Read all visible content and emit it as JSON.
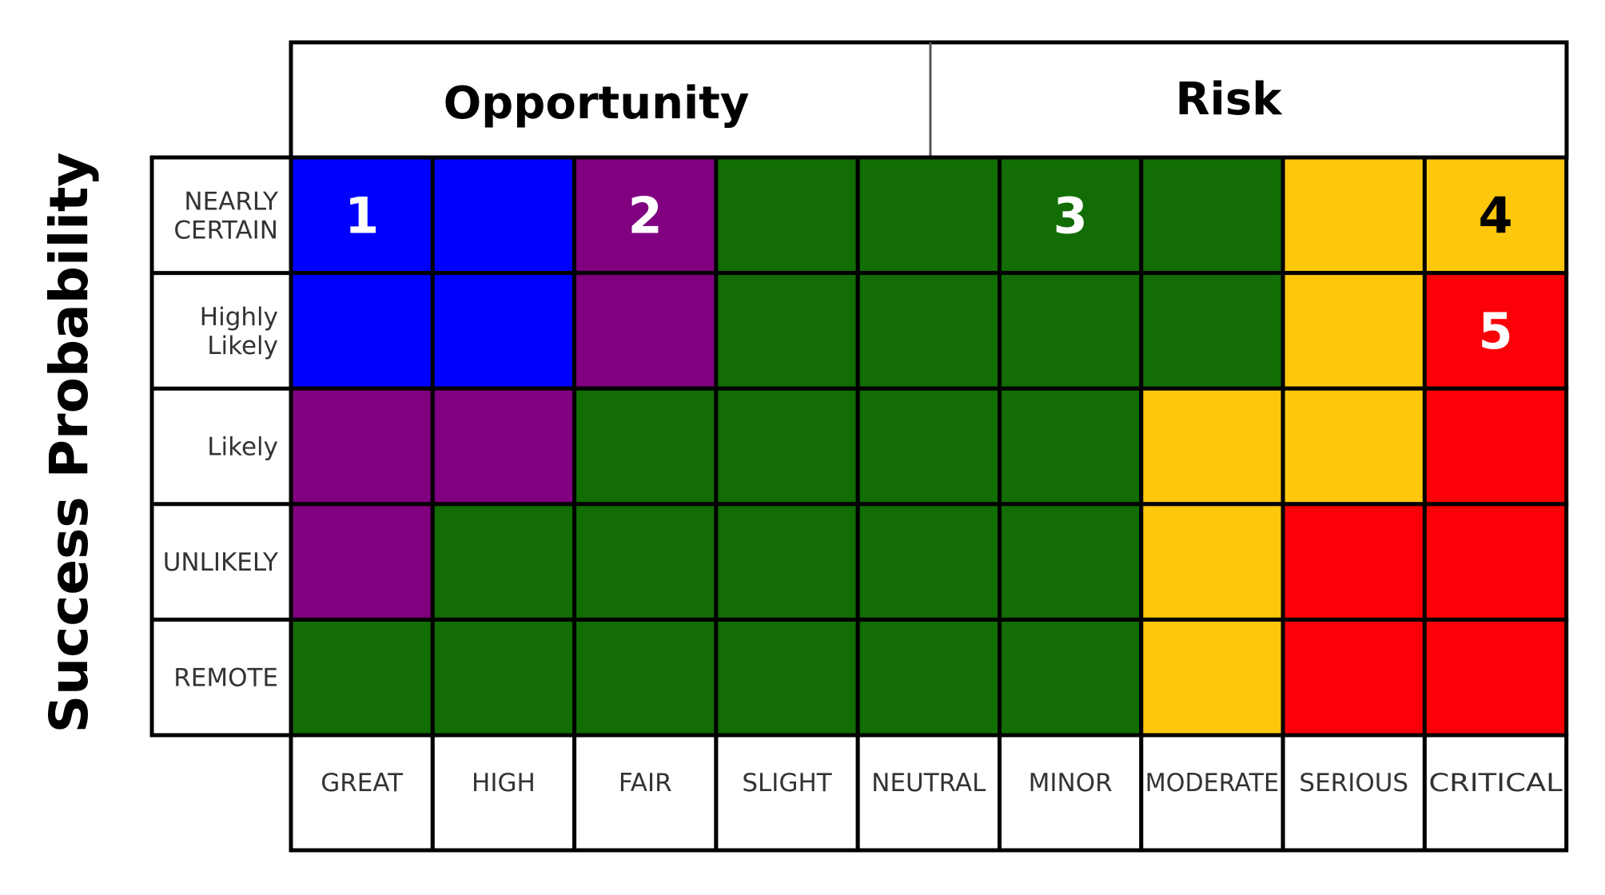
{
  "header": {
    "opportunity": "Opportunity",
    "risk": "Risk"
  },
  "y_axis_title": "Success Probability",
  "rows": [
    [
      "NEARLY",
      "CERTAIN"
    ],
    [
      "Highly",
      "Likely"
    ],
    [
      "Likely"
    ],
    [
      "UNLIKELY"
    ],
    [
      "REMOTE"
    ]
  ],
  "columns": [
    "GREAT",
    "HIGH",
    "FAIR",
    "SLIGHT",
    "NEUTRAL",
    "MINOR",
    "MODERATE",
    "SERIOUS",
    "CRITICAL"
  ],
  "colors": {
    "B": "#0000ff",
    "P": "#800080",
    "G": "#116d04",
    "Y": "#fdc80c",
    "R": "#fb0006"
  },
  "grid": [
    [
      "B",
      "B",
      "P",
      "G",
      "G",
      "G",
      "G",
      "Y",
      "Y"
    ],
    [
      "B",
      "B",
      "P",
      "G",
      "G",
      "G",
      "G",
      "Y",
      "R"
    ],
    [
      "P",
      "P",
      "G",
      "G",
      "G",
      "G",
      "Y",
      "Y",
      "R"
    ],
    [
      "P",
      "G",
      "G",
      "G",
      "G",
      "G",
      "Y",
      "R",
      "R"
    ],
    [
      "G",
      "G",
      "G",
      "G",
      "G",
      "G",
      "Y",
      "R",
      "R"
    ]
  ],
  "markers": [
    {
      "label": "1",
      "row": 0,
      "col": 0,
      "color": "#ffffff"
    },
    {
      "label": "2",
      "row": 0,
      "col": 2,
      "color": "#ffffff"
    },
    {
      "label": "3",
      "row": 0,
      "col": 5,
      "color": "#ffffff"
    },
    {
      "label": "4",
      "row": 0,
      "col": 8,
      "color": "#000000"
    },
    {
      "label": "5",
      "row": 1,
      "col": 8,
      "color": "#ffffff"
    }
  ]
}
